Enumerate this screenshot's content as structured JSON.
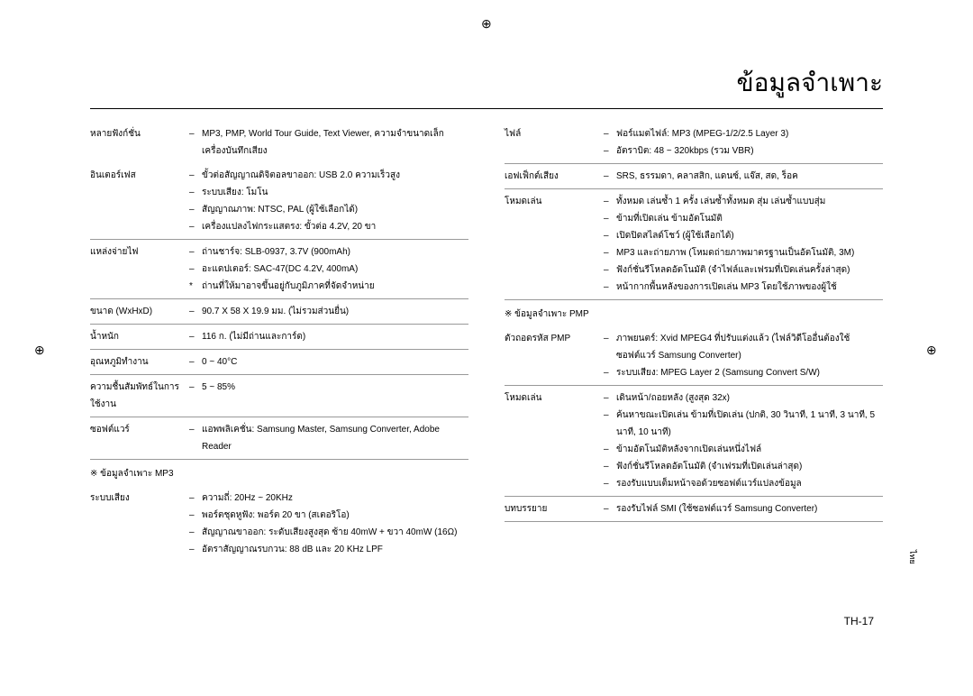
{
  "title": "ข้อมูลจำเพาะ",
  "pagenum": "TH-17",
  "sidetab": "ไทย",
  "left": {
    "rows": [
      {
        "label": "หลายฟังก์ชั่น",
        "values": [
          "MP3, PMP, World Tour Guide, Text Viewer, ความจำขนาดเล็ก เครื่องบันทึกเสียง"
        ],
        "noborder": true
      },
      {
        "label": "อินเตอร์เฟส",
        "values": [
          "ขั้วต่อสัญญาณดิจิตอลขาออก: USB 2.0 ความเร็วสูง",
          "ระบบเสียง: โมโน",
          "สัญญาณภาพ: NTSC, PAL (ผู้ใช้เลือกได้)",
          "เครื่องแปลงไฟกระแสตรง: ขั้วต่อ 4.2V, 20 ขา"
        ]
      },
      {
        "label": "แหล่งจ่ายไฟ",
        "values": [
          "ถ่านชาร์จ: SLB-0937, 3.7V (900mAh)",
          "อะแดปเตอร์: SAC-47(DC 4.2V, 400mA)"
        ],
        "footnote": "ถ่านที่ให้มาอาจขึ้นอยู่กับภูมิภาคที่จัดจำหน่าย"
      },
      {
        "label": "ขนาด (WxHxD)",
        "values": [
          "90.7 X 58 X 19.9 มม. (ไม่รวมส่วนยื่น)"
        ]
      },
      {
        "label": "น้ำหนัก",
        "values": [
          "116 ก. (ไม่มีถ่านและการ์ด)"
        ]
      },
      {
        "label": "อุณหภูมิทำงาน",
        "values": [
          "0 ~ 40°C"
        ]
      },
      {
        "label": "ความชื้นสัมพัทธ์ในการใช้งาน",
        "values": [
          "5 ~ 85%"
        ]
      },
      {
        "label": "ซอฟต์แวร์",
        "values": [
          "แอพพลิเคชั่น: Samsung Master, Samsung Converter, Adobe Reader"
        ]
      }
    ],
    "subhead": "※ ข้อมูลจำเพาะ MP3",
    "rows2": [
      {
        "label": "ระบบเสียง",
        "values": [
          "ความถี่: 20Hz ~ 20KHz",
          "พอร์ตชุดหูฟัง: พอร์ต 20 ขา (สเตอริโอ)",
          "สัญญาณขาออก: ระดับเสียงสูงสุด ซ้าย 40mW + ขวา 40mW (16Ω)",
          "อัตราสัญญาณรบกวน: 88 dB และ 20 KHz LPF"
        ],
        "noborder": true
      }
    ]
  },
  "right": {
    "rows": [
      {
        "label": "ไฟล์",
        "values": [
          "ฟอร์แมตไฟล์: MP3 (MPEG-1/2/2.5 Layer 3)",
          "อัตราบิต: 48 ~ 320kbps (รวม VBR)"
        ]
      },
      {
        "label": "เอฟเฟ็กต์เสียง",
        "values": [
          "SRS, ธรรมดา, คลาสสิก, แดนซ์, แจ๊ส, สด, ร็อค"
        ]
      },
      {
        "label": "โหมดเล่น",
        "values": [
          "ทั้งหมด เล่นซ้ำ 1 ครั้ง เล่นซ้ำทั้งหมด สุ่ม เล่นซ้ำแบบสุ่ม",
          "ข้ามที่เปิดเล่น ข้ามอัตโนมัติ",
          "เปิดปิดสไลด์โชว์ (ผู้ใช้เลือกได้)",
          "MP3 และถ่ายภาพ (โหมดถ่ายภาพมาตรฐานเป็นอัตโนมัติ, 3M)",
          "ฟังก์ชั่นรีโหลดอัตโนมัติ (จำไฟล์และเฟรมที่เปิดเล่นครั้งล่าสุด)",
          "หน้ากากพื้นหลังของการเปิดเล่น MP3 โดยใช้ภาพของผู้ใช้"
        ]
      }
    ],
    "subhead": "※ ข้อมูลจำเพาะ PMP",
    "rows2": [
      {
        "label": "ตัวถอดรหัส PMP",
        "values": [
          "ภาพยนตร์: Xvid MPEG4 ที่ปรับแต่งแล้ว (ไฟล์วิดีโออื่นต้องใช้ซอฟต์แวร์ Samsung Converter)",
          "ระบบเสียง: MPEG Layer 2 (Samsung Convert S/W)"
        ]
      },
      {
        "label": "โหมดเล่น",
        "values": [
          "เดินหน้า/ถอยหลัง (สูงสุด 32x)",
          "ค้นหาขณะเปิดเล่น ข้ามที่เปิดเล่น (ปกติ, 30 วินาที, 1 นาที, 3 นาที, 5 นาที, 10 นาที)",
          "ข้ามอัตโนมัติหลังจากเปิดเล่นหนึ่งไฟล์",
          "ฟังก์ชั่นรีโหลดอัตโนมัติ (จำเฟรมที่เปิดเล่นล่าสุด)",
          "รองรับแบบเต็มหน้าจอด้วยซอฟต์แวร์แปลงข้อมูล"
        ]
      },
      {
        "label": "บทบรรยาย",
        "values": [
          "รองรับไฟล์ SMI (ใช้ซอฟต์แวร์ Samsung Converter)"
        ]
      }
    ]
  }
}
